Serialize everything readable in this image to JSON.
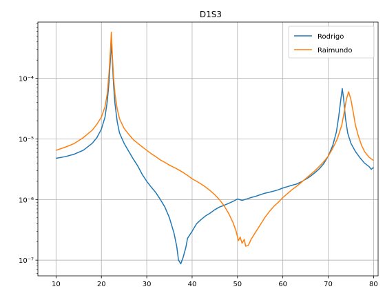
{
  "chart_data": {
    "type": "line",
    "title": "D1S3",
    "xlabel": "",
    "ylabel": "",
    "xlim": [
      6,
      81
    ],
    "ylim": [
      5.5e-08,
      0.00085
    ],
    "yscale": "log",
    "grid": true,
    "legend_position": "top-right",
    "x_ticks": [
      10,
      20,
      30,
      40,
      50,
      60,
      70,
      80
    ],
    "x_tick_labels": [
      "10",
      "20",
      "30",
      "40",
      "50",
      "60",
      "70",
      "80"
    ],
    "y_ticks": [
      1e-07,
      1e-06,
      1e-05,
      0.0001
    ],
    "y_tick_labels": [
      "10⁻⁷",
      "10⁻⁶",
      "10⁻⁵",
      "10⁻⁴"
    ],
    "series": [
      {
        "name": "Rodrigo",
        "color": "#1f77b4",
        "points": [
          [
            10,
            4.8e-06
          ],
          [
            12,
            5.1e-06
          ],
          [
            14,
            5.6e-06
          ],
          [
            16,
            6.5e-06
          ],
          [
            18,
            8.5e-06
          ],
          [
            19,
            1.05e-05
          ],
          [
            20,
            1.45e-05
          ],
          [
            20.8,
            2.3e-05
          ],
          [
            21.3,
            4.2e-05
          ],
          [
            21.7,
            9e-05
          ],
          [
            22,
            0.00022
          ],
          [
            22.2,
            0.00037
          ],
          [
            22.4,
            0.0002
          ],
          [
            22.7,
            7.5e-05
          ],
          [
            23,
            3.8e-05
          ],
          [
            23.5,
            1.9e-05
          ],
          [
            24,
            1.25e-05
          ],
          [
            25,
            8.5e-06
          ],
          [
            26,
            6.3e-06
          ],
          [
            27,
            4.7e-06
          ],
          [
            28,
            3.6e-06
          ],
          [
            29,
            2.6e-06
          ],
          [
            30,
            2e-06
          ],
          [
            31,
            1.6e-06
          ],
          [
            32,
            1.3e-06
          ],
          [
            33,
            1e-06
          ],
          [
            34,
            7.5e-07
          ],
          [
            35,
            5e-07
          ],
          [
            36,
            2.8e-07
          ],
          [
            36.6,
            1.7e-07
          ],
          [
            37,
            1e-07
          ],
          [
            37.5,
            8.7e-08
          ],
          [
            38,
            1.1e-07
          ],
          [
            38.6,
            1.6e-07
          ],
          [
            39,
            2.3e-07
          ],
          [
            40,
            3e-07
          ],
          [
            41,
            4e-07
          ],
          [
            42,
            4.7e-07
          ],
          [
            43,
            5.4e-07
          ],
          [
            44,
            6e-07
          ],
          [
            45,
            6.8e-07
          ],
          [
            46,
            7.5e-07
          ],
          [
            47,
            8e-07
          ],
          [
            48,
            8.6e-07
          ],
          [
            49,
            9.3e-07
          ],
          [
            50,
            1.02e-06
          ],
          [
            51,
            9.7e-07
          ],
          [
            52,
            1.02e-06
          ],
          [
            53,
            1.08e-06
          ],
          [
            54,
            1.13e-06
          ],
          [
            55,
            1.2e-06
          ],
          [
            56,
            1.27e-06
          ],
          [
            57,
            1.32e-06
          ],
          [
            58,
            1.38e-06
          ],
          [
            59,
            1.45e-06
          ],
          [
            60,
            1.55e-06
          ],
          [
            61,
            1.63e-06
          ],
          [
            62,
            1.72e-06
          ],
          [
            63,
            1.8e-06
          ],
          [
            64,
            1.95e-06
          ],
          [
            65,
            2.15e-06
          ],
          [
            66,
            2.4e-06
          ],
          [
            67,
            2.75e-06
          ],
          [
            68,
            3.2e-06
          ],
          [
            69,
            3.9e-06
          ],
          [
            70,
            5.2e-06
          ],
          [
            71,
            7.8e-06
          ],
          [
            71.8,
            1.3e-05
          ],
          [
            72.3,
            2.3e-05
          ],
          [
            72.8,
            4.6e-05
          ],
          [
            73.1,
            6.8e-05
          ],
          [
            73.4,
            4.6e-05
          ],
          [
            73.8,
            2.2e-05
          ],
          [
            74.3,
            1.25e-05
          ],
          [
            75,
            8.5e-06
          ],
          [
            76,
            6.2e-06
          ],
          [
            77,
            4.9e-06
          ],
          [
            78,
            4e-06
          ],
          [
            79,
            3.5e-06
          ],
          [
            79.5,
            3.15e-06
          ],
          [
            80,
            3.4e-06
          ]
        ]
      },
      {
        "name": "Raimundo",
        "color": "#ff7f0e",
        "points": [
          [
            10,
            6.5e-06
          ],
          [
            12,
            7.3e-06
          ],
          [
            14,
            8.4e-06
          ],
          [
            16,
            1.05e-05
          ],
          [
            18,
            1.4e-05
          ],
          [
            19,
            1.75e-05
          ],
          [
            20,
            2.3e-05
          ],
          [
            20.8,
            3.4e-05
          ],
          [
            21.3,
            5.6e-05
          ],
          [
            21.7,
            0.00013
          ],
          [
            22,
            0.0003
          ],
          [
            22.2,
            0.00058
          ],
          [
            22.4,
            0.00025
          ],
          [
            22.7,
            0.0001
          ],
          [
            23,
            5.5e-05
          ],
          [
            23.5,
            3.1e-05
          ],
          [
            24,
            2.15e-05
          ],
          [
            25,
            1.5e-05
          ],
          [
            26,
            1.2e-05
          ],
          [
            27,
            9.8e-06
          ],
          [
            28,
            8.5e-06
          ],
          [
            29,
            7.4e-06
          ],
          [
            30,
            6.5e-06
          ],
          [
            31,
            5.7e-06
          ],
          [
            32,
            5.1e-06
          ],
          [
            33,
            4.5e-06
          ],
          [
            34,
            4.1e-06
          ],
          [
            35,
            3.7e-06
          ],
          [
            36,
            3.4e-06
          ],
          [
            37,
            3.1e-06
          ],
          [
            38,
            2.8e-06
          ],
          [
            39,
            2.5e-06
          ],
          [
            40,
            2.2e-06
          ],
          [
            41,
            2e-06
          ],
          [
            42,
            1.8e-06
          ],
          [
            43,
            1.6e-06
          ],
          [
            44,
            1.4e-06
          ],
          [
            45,
            1.2e-06
          ],
          [
            46,
            1e-06
          ],
          [
            47,
            8e-07
          ],
          [
            48,
            6e-07
          ],
          [
            49,
            4.2e-07
          ],
          [
            49.7,
            3e-07
          ],
          [
            50.2,
            2.1e-07
          ],
          [
            50.6,
            2.4e-07
          ],
          [
            51,
            1.9e-07
          ],
          [
            51.5,
            2.2e-07
          ],
          [
            51.8,
            1.7e-07
          ],
          [
            52.4,
            1.75e-07
          ],
          [
            53,
            2.2e-07
          ],
          [
            54,
            2.9e-07
          ],
          [
            55,
            3.8e-07
          ],
          [
            56,
            5e-07
          ],
          [
            57,
            6.3e-07
          ],
          [
            58,
            7.7e-07
          ],
          [
            59,
            9e-07
          ],
          [
            60,
            1.08e-06
          ],
          [
            61,
            1.25e-06
          ],
          [
            62,
            1.45e-06
          ],
          [
            63,
            1.65e-06
          ],
          [
            64,
            1.9e-06
          ],
          [
            65,
            2.2e-06
          ],
          [
            66,
            2.55e-06
          ],
          [
            67,
            2.95e-06
          ],
          [
            68,
            3.5e-06
          ],
          [
            69,
            4.2e-06
          ],
          [
            70,
            5.2e-06
          ],
          [
            71,
            7e-06
          ],
          [
            72,
            1e-05
          ],
          [
            73,
            1.7e-05
          ],
          [
            73.6,
            3e-05
          ],
          [
            74,
            4.5e-05
          ],
          [
            74.5,
            6e-05
          ],
          [
            75,
            4.5e-05
          ],
          [
            75.5,
            2.8e-05
          ],
          [
            76,
            1.7e-05
          ],
          [
            76.6,
            1.15e-05
          ],
          [
            77.3,
            8e-06
          ],
          [
            78,
            6.2e-06
          ],
          [
            79,
            5e-06
          ],
          [
            80,
            4.4e-06
          ]
        ]
      }
    ]
  }
}
